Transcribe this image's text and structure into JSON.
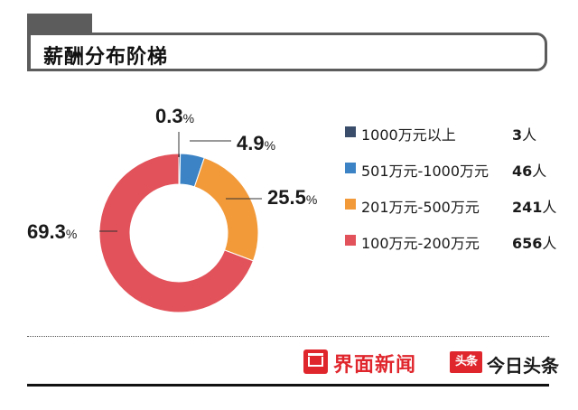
{
  "title": "薪酬分布阶梯",
  "chart_data": {
    "type": "pie",
    "title": "薪酬分布阶梯",
    "donut": true,
    "unit": "人",
    "labels": [
      "1000万元以上",
      "501万元-1000万元",
      "201万元-500万元",
      "100万元-200万元"
    ],
    "counts": [
      3,
      46,
      241,
      656
    ],
    "percent_labels": [
      "0.3",
      "4.9",
      "25.5",
      "69.3"
    ],
    "percent_unit": "%",
    "values": [
      0.3,
      4.9,
      25.5,
      69.3
    ],
    "colors": [
      "#3a4e6b",
      "#3b83c4",
      "#f29a3a",
      "#e2525a"
    ],
    "legend_position": "right"
  },
  "brands": {
    "jiemian": {
      "name": "界面新闻"
    },
    "toutiao": {
      "logo_text": "头条",
      "name": "今日头条"
    }
  },
  "colors": {
    "brand_red": "#e0262d",
    "title_dark": "#5c5c5c"
  }
}
